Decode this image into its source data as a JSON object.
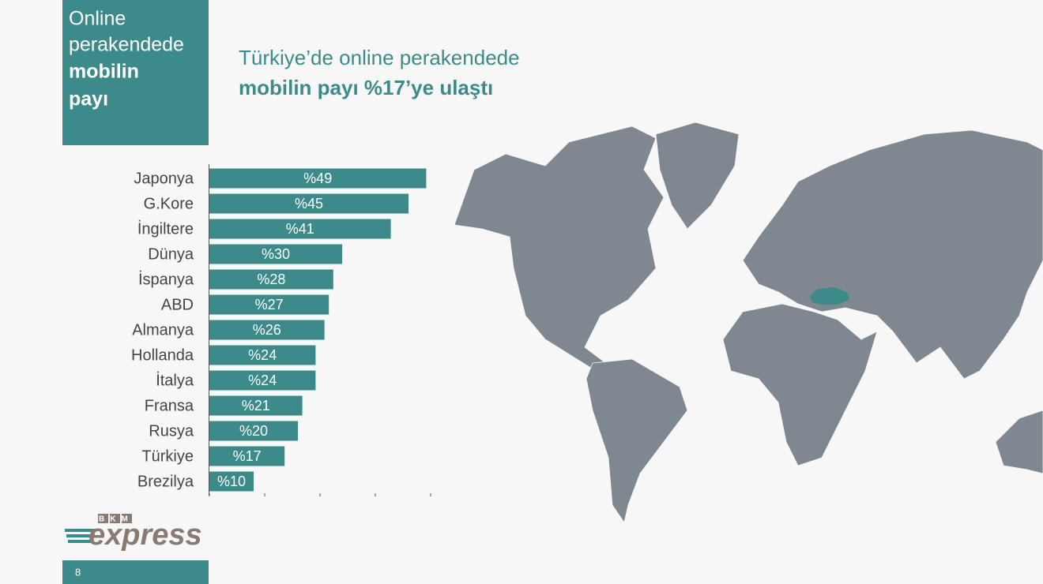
{
  "sidebar": {
    "lines": [
      "Online",
      "perakendede",
      "mobilin",
      "payı"
    ]
  },
  "headline": {
    "line1": "Türkiye’de online perakendede",
    "line2": "mobilin payı %17’ye ulaştı"
  },
  "chart_data": {
    "type": "bar",
    "orientation": "horizontal",
    "categories": [
      "Japonya",
      "G.Kore",
      "İngiltere",
      "Dünya",
      "İspanya",
      "ABD",
      "Almanya",
      "Hollanda",
      "İtalya",
      "Fransa",
      "Rusya",
      "Türkiye",
      "Brezilya"
    ],
    "values": [
      49,
      45,
      41,
      30,
      28,
      27,
      26,
      24,
      24,
      21,
      20,
      17,
      10
    ],
    "value_labels": [
      "%49",
      "%45",
      "%41",
      "%30",
      "%28",
      "%27",
      "%26",
      "%24",
      "%24",
      "%21",
      "%20",
      "%17",
      "%10"
    ],
    "color": "#3d8a8a",
    "xlim": [
      0,
      50
    ],
    "xticks": [
      0,
      12.5,
      25,
      37.5,
      50
    ]
  },
  "logo": {
    "brand": "BKM",
    "name": "express"
  },
  "footer": {
    "page_number": "8"
  }
}
